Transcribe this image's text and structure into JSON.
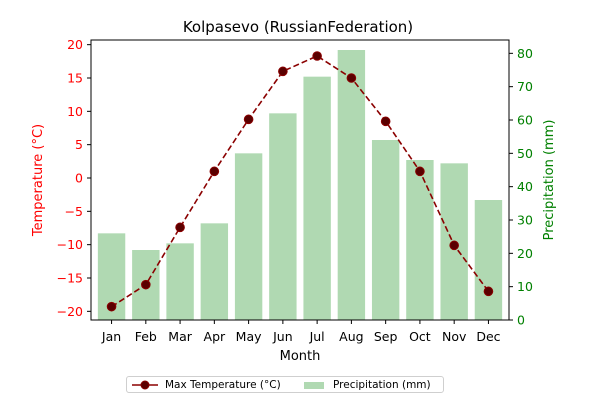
{
  "chart_data": {
    "type": "bar+line",
    "title": "Kolpasevo (RussianFederation)",
    "xlabel": "Month",
    "categories": [
      "Jan",
      "Feb",
      "Mar",
      "Apr",
      "May",
      "Jun",
      "Jul",
      "Aug",
      "Sep",
      "Oct",
      "Nov",
      "Dec"
    ],
    "left_axis": {
      "label": "Temperature (°C)",
      "color": "#ff0000",
      "ylim": [
        -21.3,
        20.7
      ],
      "ticks": [
        "-20",
        "-15",
        "-10",
        "-5",
        "0",
        "5",
        "10",
        "15",
        "20"
      ]
    },
    "right_axis": {
      "label": "Precipitation (mm)",
      "color": "#008000",
      "ylim": [
        0,
        84
      ],
      "ticks": [
        "0",
        "10",
        "20",
        "30",
        "40",
        "50",
        "60",
        "70",
        "80"
      ]
    },
    "series": [
      {
        "name": "Max Temperature (°C)",
        "type": "line",
        "axis": "left",
        "color": "#8b0000",
        "line_style": "dashed",
        "marker": "circle",
        "values": [
          -19.3,
          -16.0,
          -7.4,
          1.0,
          8.8,
          16.0,
          18.3,
          15.0,
          8.5,
          1.0,
          -10.1,
          -17.0
        ]
      },
      {
        "name": "Precipitation (mm)",
        "type": "bar",
        "axis": "right",
        "color": "#b0d9b2",
        "values": [
          26,
          21,
          23,
          29,
          50,
          62,
          73,
          81,
          54,
          48,
          47,
          36
        ]
      }
    ],
    "legend": {
      "placement": "bottom-center",
      "entries": [
        "Max Temperature (°C)",
        "Precipitation (mm)"
      ]
    },
    "grid": false
  }
}
